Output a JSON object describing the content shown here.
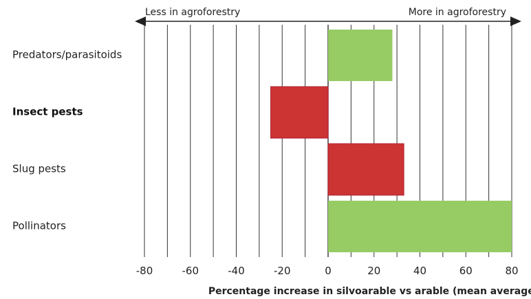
{
  "chart_data": {
    "type": "bar",
    "orientation": "horizontal",
    "categories": [
      "Predators/parasitoids",
      "Insect pests",
      "Slug pests",
      "Pollinators"
    ],
    "bold_categories": [
      "Insect pests"
    ],
    "values": [
      28,
      -25,
      33,
      80
    ],
    "bar_colors": [
      "#97cc64",
      "#cc3333",
      "#cc3333",
      "#97cc64"
    ],
    "xlim": [
      -80,
      80
    ],
    "xticks": [
      -80,
      -60,
      -40,
      -20,
      0,
      20,
      40,
      60,
      80
    ],
    "minor_gridlines_every": 10,
    "grid": true,
    "xlabel": "Percentage increase in silvoarable vs arable (mean average)",
    "direction_labels": {
      "left": "Less in agroforestry",
      "right": "More in agroforestry"
    },
    "colors": {
      "green": "#97cc64",
      "red": "#cc3333",
      "grid": "#333333",
      "axis_arrow": "#222222"
    }
  }
}
